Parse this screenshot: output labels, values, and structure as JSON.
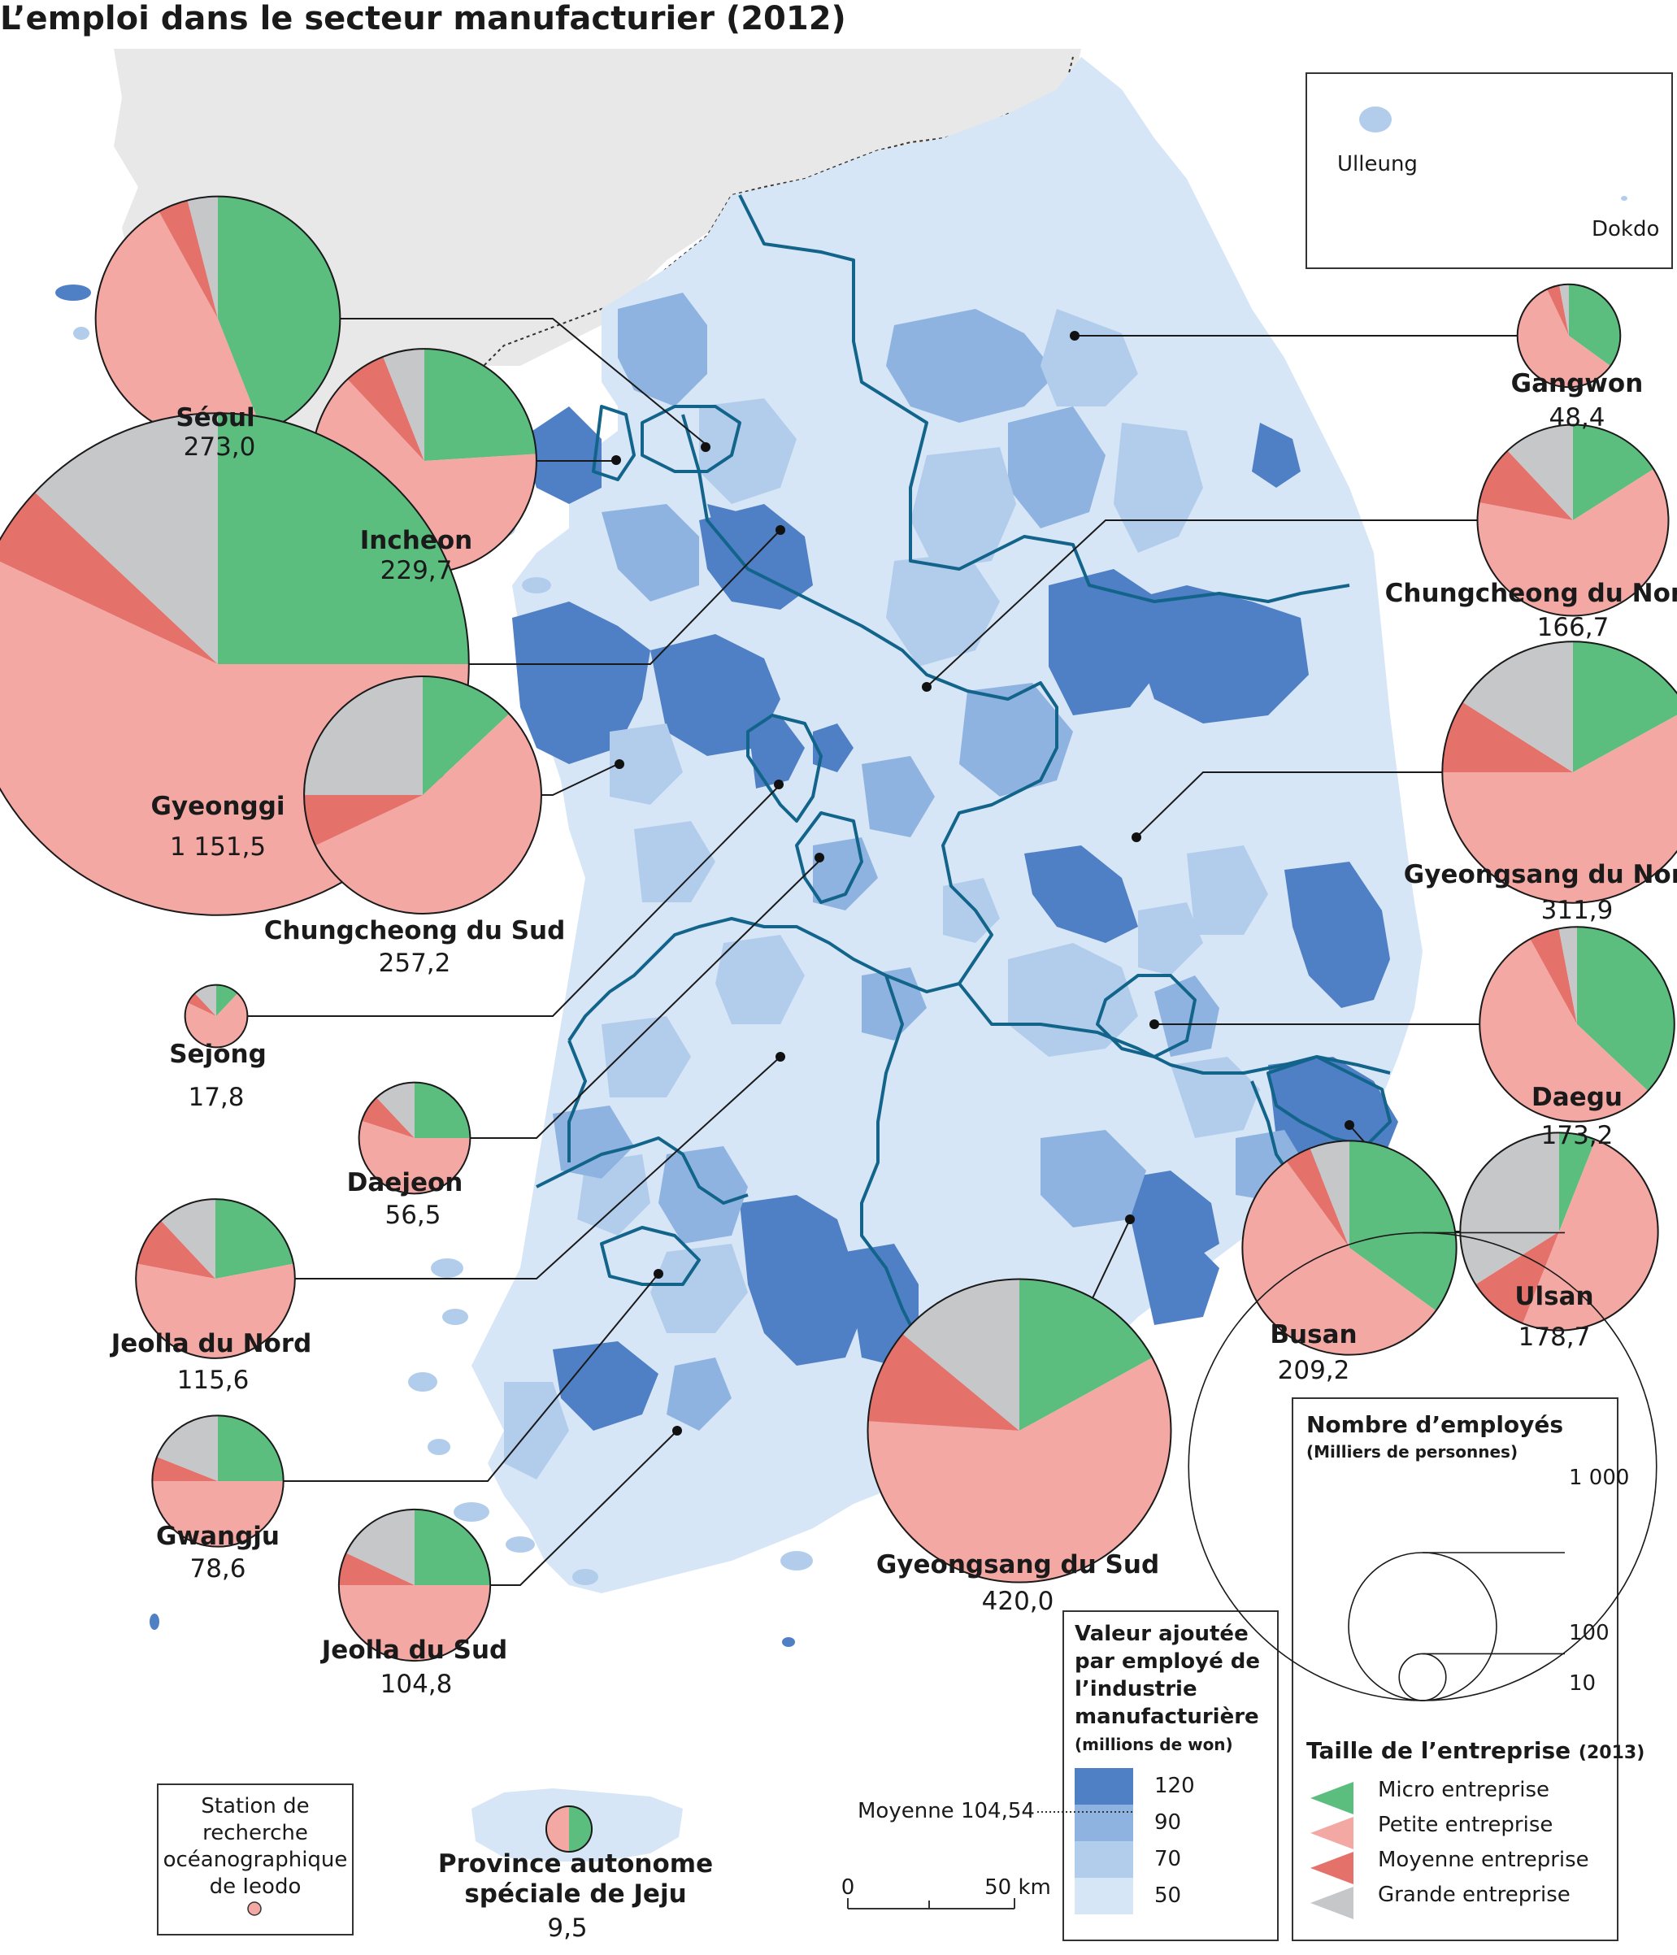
{
  "title": "L’emploi dans le secteur manufacturier (2012)",
  "colors": {
    "micro": "#5bbd7e",
    "petite": "#f4a8a4",
    "moyenne": "#e5716b",
    "grande": "#c6c7c9",
    "north_land": "#e8e8e8",
    "class_50": "#d6e6f6",
    "class_70": "#b2cdeb",
    "class_90": "#8fb3e0",
    "class_120": "#4f7fc4",
    "province_border": "#12648a"
  },
  "inset": {
    "ulleung": "Ulleung",
    "dokdo": "Dokdo"
  },
  "regions": [
    {
      "name": "Séoul",
      "value": "273,0",
      "employees": 273.0,
      "shares": [
        0.44,
        0.48,
        0.04,
        0.04
      ]
    },
    {
      "name": "Incheon",
      "value": "229,7",
      "employees": 229.7,
      "shares": [
        0.24,
        0.64,
        0.06,
        0.06
      ]
    },
    {
      "name": "Gyeonggi",
      "value": "1 151,5",
      "employees": 1151.5,
      "shares": [
        0.25,
        0.57,
        0.05,
        0.13
      ]
    },
    {
      "name": "Chungcheong du Sud",
      "value": "257,2",
      "employees": 257.2,
      "shares": [
        0.13,
        0.55,
        0.07,
        0.25
      ]
    },
    {
      "name": "Sejong",
      "value": "17,8",
      "employees": 17.8,
      "shares": [
        0.12,
        0.7,
        0.06,
        0.12
      ]
    },
    {
      "name": "Daejeon",
      "value": "56,5",
      "employees": 56.5,
      "shares": [
        0.25,
        0.55,
        0.08,
        0.12
      ]
    },
    {
      "name": "Jeolla du Nord",
      "value": "115,6",
      "employees": 115.6,
      "shares": [
        0.22,
        0.56,
        0.1,
        0.12
      ]
    },
    {
      "name": "Gwangju",
      "value": "78,6",
      "employees": 78.6,
      "shares": [
        0.25,
        0.5,
        0.06,
        0.19
      ]
    },
    {
      "name": "Jeolla du Sud",
      "value": "104,8",
      "employees": 104.8,
      "shares": [
        0.25,
        0.5,
        0.07,
        0.18
      ]
    },
    {
      "name": "Gangwon",
      "value": "48,4",
      "employees": 48.4,
      "shares": [
        0.35,
        0.58,
        0.04,
        0.03
      ]
    },
    {
      "name": "Chungcheong du Nord",
      "value": "166,7",
      "employees": 166.7,
      "shares": [
        0.16,
        0.62,
        0.1,
        0.12
      ]
    },
    {
      "name": "Gyeongsang du Nord",
      "value": "311,9",
      "employees": 311.9,
      "shares": [
        0.17,
        0.58,
        0.09,
        0.16
      ]
    },
    {
      "name": "Daegu",
      "value": "173,2",
      "employees": 173.2,
      "shares": [
        0.37,
        0.55,
        0.05,
        0.03
      ]
    },
    {
      "name": "Ulsan",
      "value": "178,7",
      "employees": 178.7,
      "shares": [
        0.06,
        0.5,
        0.1,
        0.34
      ]
    },
    {
      "name": "Busan",
      "value": "209,2",
      "employees": 209.2,
      "shares": [
        0.35,
        0.55,
        0.04,
        0.06
      ]
    },
    {
      "name": "Gyeongsang du Sud",
      "value": "420,0",
      "employees": 420.0,
      "shares": [
        0.17,
        0.59,
        0.1,
        0.14
      ]
    },
    {
      "name": "Province autonome spéciale de Jeju",
      "value": "9,5",
      "employees": 9.5,
      "shares": [
        0.5,
        0.5,
        0.0,
        0.0
      ]
    }
  ],
  "legend_value": {
    "title_line1": "Valeur ajoutée",
    "title_line2": "par employé de",
    "title_line3": "l’industrie",
    "title_line4": "manufacturière",
    "unit": "(millions de won)",
    "ticks": [
      "120",
      "90",
      "70",
      "50"
    ],
    "moyenne": "Moyenne 104,54"
  },
  "legend_size": {
    "title": "Nombre d’employés",
    "unit": "(Milliers de personnes)",
    "ticks": [
      "1 000",
      "100",
      "10"
    ],
    "reference_values": [
      1000,
      100,
      10
    ]
  },
  "legend_type": {
    "title": "Taille de l’entreprise",
    "year": "(2013)",
    "items": [
      "Micro entreprise",
      "Petite entreprise",
      "Moyenne entreprise",
      "Grande entreprise"
    ]
  },
  "station": {
    "line1": "Station de",
    "line2": "recherche",
    "line3": "océanographique",
    "line4": "de Ieodo"
  },
  "scale": {
    "zero": "0",
    "end": "50 km"
  }
}
